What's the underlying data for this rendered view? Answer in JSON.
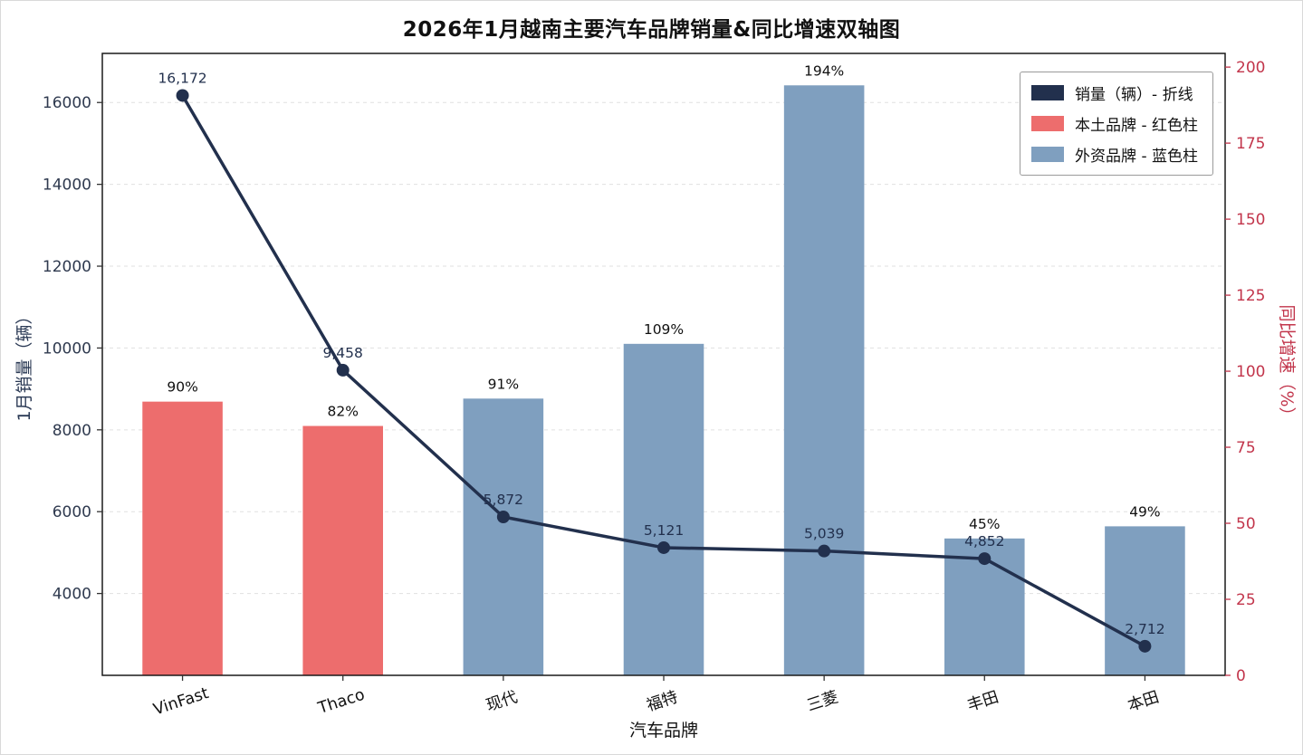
{
  "chart_data": {
    "type": "bar",
    "subtype": "dual-axis bar + line",
    "title": "2026年1月越南主要汽车品牌销量&同比增速双轴图",
    "xlabel": "汽车品牌",
    "ylabel_left": "1月销量（辆）",
    "ylabel_right": "同比增速（%）",
    "categories": [
      "VinFast",
      "Thaco",
      "现代",
      "福特",
      "三菱",
      "丰田",
      "本田"
    ],
    "series": [
      {
        "name": "销量（辆）- 折线",
        "type": "line",
        "axis": "left",
        "color": "#22304d",
        "values": [
          16172,
          9458,
          5872,
          5121,
          5039,
          4852,
          2712
        ],
        "labels": [
          "16,172",
          "9,458",
          "5,872",
          "5,121",
          "5,039",
          "4,852",
          "2,712"
        ]
      },
      {
        "name": "同比增速 - 柱",
        "type": "bar",
        "axis": "right",
        "values": [
          90,
          82,
          91,
          109,
          194,
          45,
          49
        ],
        "labels": [
          "90%",
          "82%",
          "91%",
          "109%",
          "194%",
          "45%",
          "49%"
        ],
        "bar_colors": [
          "#ed6d6d",
          "#ed6d6d",
          "#7f9fbf",
          "#7f9fbf",
          "#7f9fbf",
          "#7f9fbf",
          "#7f9fbf"
        ]
      }
    ],
    "left_axis": {
      "ticks": [
        4000,
        6000,
        8000,
        10000,
        12000,
        14000,
        16000
      ],
      "min": 2000,
      "max": 17200,
      "text_color": "#2f3a4f",
      "title_color": "#2b3a55"
    },
    "right_axis": {
      "ticks": [
        0,
        25,
        50,
        75,
        100,
        125,
        150,
        175,
        200
      ],
      "min": 0,
      "max": 204.5,
      "text_color": "#c2354b",
      "title_color": "#c2354b"
    },
    "legend": {
      "items": [
        {
          "label": "销量（辆）- 折线",
          "color": "#22304d"
        },
        {
          "label": "本土品牌 - 红色柱",
          "color": "#ed6d6d"
        },
        {
          "label": "外资品牌 - 蓝色柱",
          "color": "#7f9fbf"
        }
      ]
    },
    "grid": true,
    "colors": {
      "spine": "#1a1a1a",
      "grid": "#e0e0e0",
      "bar_label": "#111111",
      "point_label": "#22304d"
    }
  }
}
